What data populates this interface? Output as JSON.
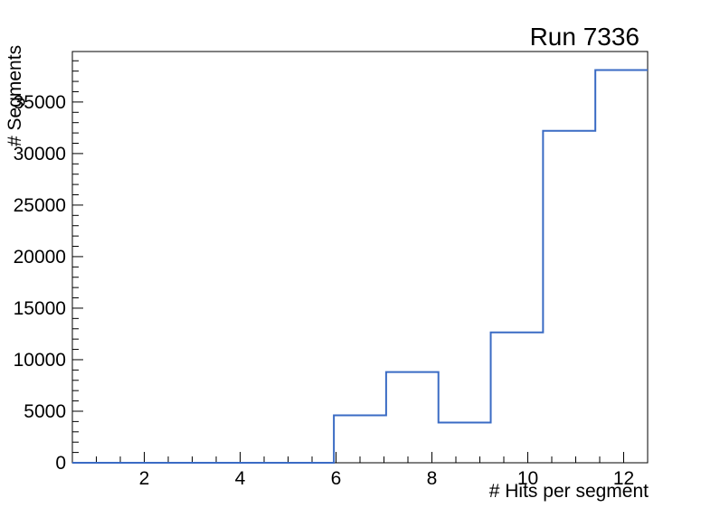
{
  "chart_data": {
    "type": "step-histogram",
    "title": "Run 7336",
    "xlabel": "# Hits per segment",
    "ylabel": "# Segments",
    "xlim": [
      0.5,
      12.5
    ],
    "ylim": [
      0,
      39900
    ],
    "n_bins": 11,
    "bin_edges": [
      0.5,
      1.591,
      2.682,
      3.773,
      4.864,
      5.955,
      7.045,
      8.136,
      9.227,
      10.318,
      11.409,
      12.5
    ],
    "values": [
      0,
      0,
      0,
      0,
      0,
      4600,
      8800,
      3900,
      12650,
      32200,
      38100
    ],
    "x_axis": {
      "major_ticks": [
        2,
        4,
        6,
        8,
        10,
        12
      ],
      "major_labels": [
        "2",
        "4",
        "6",
        "8",
        "10",
        "12"
      ],
      "minor_step": 0.5
    },
    "y_axis": {
      "major_step": 5000,
      "minor_step": 1000,
      "major_labels": [
        "0",
        "5000",
        "10000",
        "15000",
        "20000",
        "25000",
        "30000",
        "35000"
      ]
    },
    "grid": false,
    "legend": "none",
    "colors": {
      "series": "#3a6bc4",
      "axis": "#000000",
      "text": "#000000",
      "background": "#ffffff"
    }
  }
}
